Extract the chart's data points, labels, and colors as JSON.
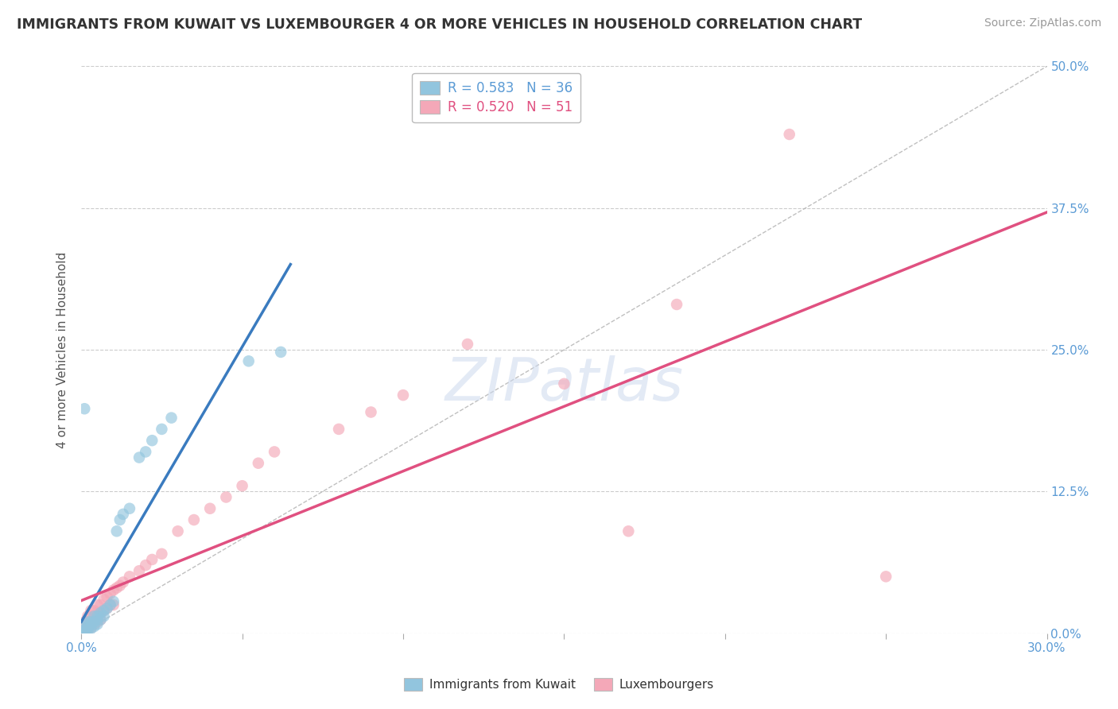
{
  "title": "IMMIGRANTS FROM KUWAIT VS LUXEMBOURGER 4 OR MORE VEHICLES IN HOUSEHOLD CORRELATION CHART",
  "source": "Source: ZipAtlas.com",
  "ylabel_ticks": [
    "0.0%",
    "12.5%",
    "25.0%",
    "37.5%",
    "50.0%"
  ],
  "ylabel_label": "4 or more Vehicles in Household",
  "xmin": 0.0,
  "xmax": 0.3,
  "ymin": 0.0,
  "ymax": 0.5,
  "legend_label1": "Immigrants from Kuwait",
  "legend_label2": "Luxembourgers",
  "series1_color": "#92c5de",
  "series2_color": "#f4a8b8",
  "series1_line_color": "#3a7bbf",
  "series2_line_color": "#e05080",
  "watermark_text": "ZIPatlas",
  "series1_R": 0.583,
  "series1_N": 36,
  "series2_R": 0.52,
  "series2_N": 51,
  "series1_x": [
    0.001,
    0.001,
    0.001,
    0.001,
    0.002,
    0.002,
    0.002,
    0.002,
    0.003,
    0.003,
    0.003,
    0.004,
    0.004,
    0.004,
    0.005,
    0.005,
    0.005,
    0.006,
    0.006,
    0.007,
    0.007,
    0.008,
    0.009,
    0.01,
    0.011,
    0.012,
    0.013,
    0.015,
    0.018,
    0.02,
    0.022,
    0.025,
    0.028,
    0.052,
    0.062,
    0.001
  ],
  "series1_y": [
    0.005,
    0.003,
    0.002,
    0.001,
    0.01,
    0.008,
    0.004,
    0.002,
    0.01,
    0.007,
    0.004,
    0.015,
    0.01,
    0.006,
    0.015,
    0.012,
    0.008,
    0.018,
    0.012,
    0.02,
    0.015,
    0.022,
    0.025,
    0.028,
    0.09,
    0.1,
    0.105,
    0.11,
    0.155,
    0.16,
    0.17,
    0.18,
    0.19,
    0.24,
    0.248,
    0.198
  ],
  "series2_x": [
    0.001,
    0.001,
    0.001,
    0.002,
    0.002,
    0.002,
    0.003,
    0.003,
    0.003,
    0.003,
    0.004,
    0.004,
    0.004,
    0.005,
    0.005,
    0.005,
    0.006,
    0.006,
    0.006,
    0.007,
    0.007,
    0.008,
    0.008,
    0.009,
    0.009,
    0.01,
    0.01,
    0.011,
    0.012,
    0.013,
    0.015,
    0.018,
    0.02,
    0.022,
    0.025,
    0.03,
    0.035,
    0.04,
    0.045,
    0.05,
    0.055,
    0.06,
    0.08,
    0.09,
    0.1,
    0.12,
    0.15,
    0.17,
    0.185,
    0.22,
    0.25
  ],
  "series2_y": [
    0.01,
    0.008,
    0.002,
    0.015,
    0.01,
    0.005,
    0.02,
    0.015,
    0.01,
    0.005,
    0.02,
    0.015,
    0.008,
    0.025,
    0.018,
    0.01,
    0.025,
    0.018,
    0.012,
    0.03,
    0.02,
    0.032,
    0.022,
    0.035,
    0.025,
    0.038,
    0.025,
    0.04,
    0.042,
    0.045,
    0.05,
    0.055,
    0.06,
    0.065,
    0.07,
    0.09,
    0.1,
    0.11,
    0.12,
    0.13,
    0.15,
    0.16,
    0.18,
    0.195,
    0.21,
    0.255,
    0.22,
    0.09,
    0.29,
    0.44,
    0.05
  ]
}
